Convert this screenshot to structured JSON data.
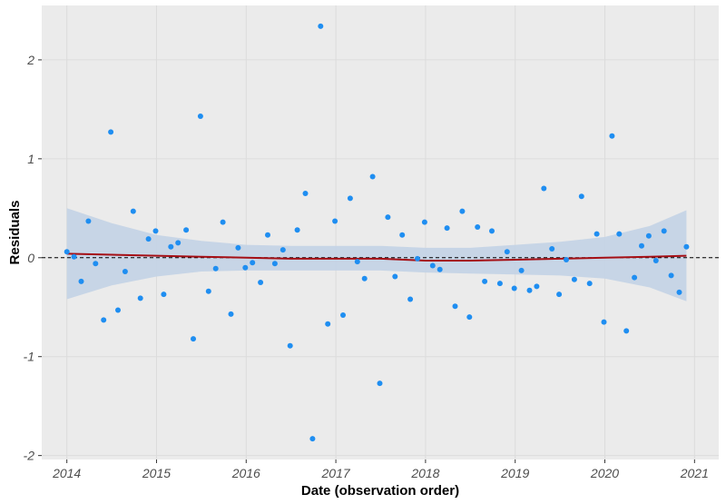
{
  "chart_data": {
    "type": "scatter",
    "title": "",
    "xlabel": "Date (observation order)",
    "ylabel": "Residuals",
    "x_ticks": [
      2014,
      2015,
      2016,
      2017,
      2018,
      2019,
      2020,
      2021
    ],
    "y_ticks": [
      -2,
      -1,
      0,
      1,
      2
    ],
    "xlim": [
      2013.72,
      2021.27
    ],
    "ylim": [
      -2.04,
      2.55
    ],
    "grid": true,
    "legend": "none",
    "reference_line": {
      "y": 0,
      "style": "dashed"
    },
    "colors": {
      "panel_background": "#ebebeb",
      "grid": "#dcdcdc",
      "points": "#1f8ef1",
      "smooth_line": "#a50f15",
      "confidence_band": "#c3d3e6",
      "reference_line": "#000000"
    },
    "points": [
      {
        "x": 2014.0,
        "y": 0.06
      },
      {
        "x": 2014.08,
        "y": 0.01
      },
      {
        "x": 2014.16,
        "y": -0.24
      },
      {
        "x": 2014.24,
        "y": 0.37
      },
      {
        "x": 2014.32,
        "y": -0.06
      },
      {
        "x": 2014.41,
        "y": -0.63
      },
      {
        "x": 2014.49,
        "y": 1.27
      },
      {
        "x": 2014.57,
        "y": -0.53
      },
      {
        "x": 2014.65,
        "y": -0.14
      },
      {
        "x": 2014.74,
        "y": 0.47
      },
      {
        "x": 2014.82,
        "y": -0.41
      },
      {
        "x": 2014.91,
        "y": 0.19
      },
      {
        "x": 2014.99,
        "y": 0.27
      },
      {
        "x": 2015.08,
        "y": -0.37
      },
      {
        "x": 2015.16,
        "y": 0.11
      },
      {
        "x": 2015.24,
        "y": 0.15
      },
      {
        "x": 2015.33,
        "y": 0.28
      },
      {
        "x": 2015.41,
        "y": -0.82
      },
      {
        "x": 2015.49,
        "y": 1.43
      },
      {
        "x": 2015.58,
        "y": -0.34
      },
      {
        "x": 2015.66,
        "y": -0.11
      },
      {
        "x": 2015.74,
        "y": 0.36
      },
      {
        "x": 2015.83,
        "y": -0.57
      },
      {
        "x": 2015.91,
        "y": 0.1
      },
      {
        "x": 2015.99,
        "y": -0.1
      },
      {
        "x": 2016.07,
        "y": -0.05
      },
      {
        "x": 2016.16,
        "y": -0.25
      },
      {
        "x": 2016.24,
        "y": 0.23
      },
      {
        "x": 2016.32,
        "y": -0.06
      },
      {
        "x": 2016.41,
        "y": 0.08
      },
      {
        "x": 2016.49,
        "y": -0.89
      },
      {
        "x": 2016.57,
        "y": 0.28
      },
      {
        "x": 2016.66,
        "y": 0.65
      },
      {
        "x": 2016.74,
        "y": -1.83
      },
      {
        "x": 2016.83,
        "y": 2.34
      },
      {
        "x": 2016.91,
        "y": -0.67
      },
      {
        "x": 2016.99,
        "y": 0.37
      },
      {
        "x": 2017.08,
        "y": -0.58
      },
      {
        "x": 2017.16,
        "y": 0.6
      },
      {
        "x": 2017.24,
        "y": -0.04
      },
      {
        "x": 2017.32,
        "y": -0.21
      },
      {
        "x": 2017.41,
        "y": 0.82
      },
      {
        "x": 2017.49,
        "y": -1.27
      },
      {
        "x": 2017.58,
        "y": 0.41
      },
      {
        "x": 2017.66,
        "y": -0.19
      },
      {
        "x": 2017.74,
        "y": 0.23
      },
      {
        "x": 2017.83,
        "y": -0.42
      },
      {
        "x": 2017.91,
        "y": -0.01
      },
      {
        "x": 2017.99,
        "y": 0.36
      },
      {
        "x": 2018.08,
        "y": -0.08
      },
      {
        "x": 2018.16,
        "y": -0.12
      },
      {
        "x": 2018.24,
        "y": 0.3
      },
      {
        "x": 2018.33,
        "y": -0.49
      },
      {
        "x": 2018.41,
        "y": 0.47
      },
      {
        "x": 2018.49,
        "y": -0.6
      },
      {
        "x": 2018.58,
        "y": 0.31
      },
      {
        "x": 2018.66,
        "y": -0.24
      },
      {
        "x": 2018.74,
        "y": 0.27
      },
      {
        "x": 2018.83,
        "y": -0.26
      },
      {
        "x": 2018.91,
        "y": 0.06
      },
      {
        "x": 2018.99,
        "y": -0.31
      },
      {
        "x": 2019.07,
        "y": -0.13
      },
      {
        "x": 2019.16,
        "y": -0.33
      },
      {
        "x": 2019.24,
        "y": -0.29
      },
      {
        "x": 2019.32,
        "y": 0.7
      },
      {
        "x": 2019.41,
        "y": 0.09
      },
      {
        "x": 2019.49,
        "y": -0.37
      },
      {
        "x": 2019.57,
        "y": -0.02
      },
      {
        "x": 2019.66,
        "y": -0.22
      },
      {
        "x": 2019.74,
        "y": 0.62
      },
      {
        "x": 2019.83,
        "y": -0.26
      },
      {
        "x": 2019.91,
        "y": 0.24
      },
      {
        "x": 2019.99,
        "y": -0.65
      },
      {
        "x": 2020.08,
        "y": 1.23
      },
      {
        "x": 2020.16,
        "y": 0.24
      },
      {
        "x": 2020.24,
        "y": -0.74
      },
      {
        "x": 2020.33,
        "y": -0.2
      },
      {
        "x": 2020.41,
        "y": 0.12
      },
      {
        "x": 2020.49,
        "y": 0.22
      },
      {
        "x": 2020.57,
        "y": -0.03
      },
      {
        "x": 2020.66,
        "y": 0.27
      },
      {
        "x": 2020.74,
        "y": -0.18
      },
      {
        "x": 2020.83,
        "y": -0.35
      },
      {
        "x": 2020.91,
        "y": 0.11
      }
    ],
    "smooth_fit": [
      {
        "x": 2014.0,
        "y": 0.04,
        "lower": -0.42,
        "upper": 0.5
      },
      {
        "x": 2014.5,
        "y": 0.03,
        "lower": -0.28,
        "upper": 0.35
      },
      {
        "x": 2015.0,
        "y": 0.02,
        "lower": -0.19,
        "upper": 0.23
      },
      {
        "x": 2015.5,
        "y": 0.01,
        "lower": -0.14,
        "upper": 0.17
      },
      {
        "x": 2016.0,
        "y": 0.0,
        "lower": -0.13,
        "upper": 0.13
      },
      {
        "x": 2016.5,
        "y": -0.01,
        "lower": -0.13,
        "upper": 0.12
      },
      {
        "x": 2017.0,
        "y": -0.01,
        "lower": -0.13,
        "upper": 0.12
      },
      {
        "x": 2017.5,
        "y": -0.01,
        "lower": -0.13,
        "upper": 0.12
      },
      {
        "x": 2018.0,
        "y": -0.03,
        "lower": -0.15,
        "upper": 0.1
      },
      {
        "x": 2018.5,
        "y": -0.03,
        "lower": -0.16,
        "upper": 0.1
      },
      {
        "x": 2019.0,
        "y": -0.02,
        "lower": -0.17,
        "upper": 0.13
      },
      {
        "x": 2019.5,
        "y": -0.01,
        "lower": -0.18,
        "upper": 0.16
      },
      {
        "x": 2020.0,
        "y": 0.0,
        "lower": -0.21,
        "upper": 0.21
      },
      {
        "x": 2020.5,
        "y": 0.01,
        "lower": -0.3,
        "upper": 0.32
      },
      {
        "x": 2020.91,
        "y": 0.02,
        "lower": -0.44,
        "upper": 0.48
      }
    ]
  }
}
